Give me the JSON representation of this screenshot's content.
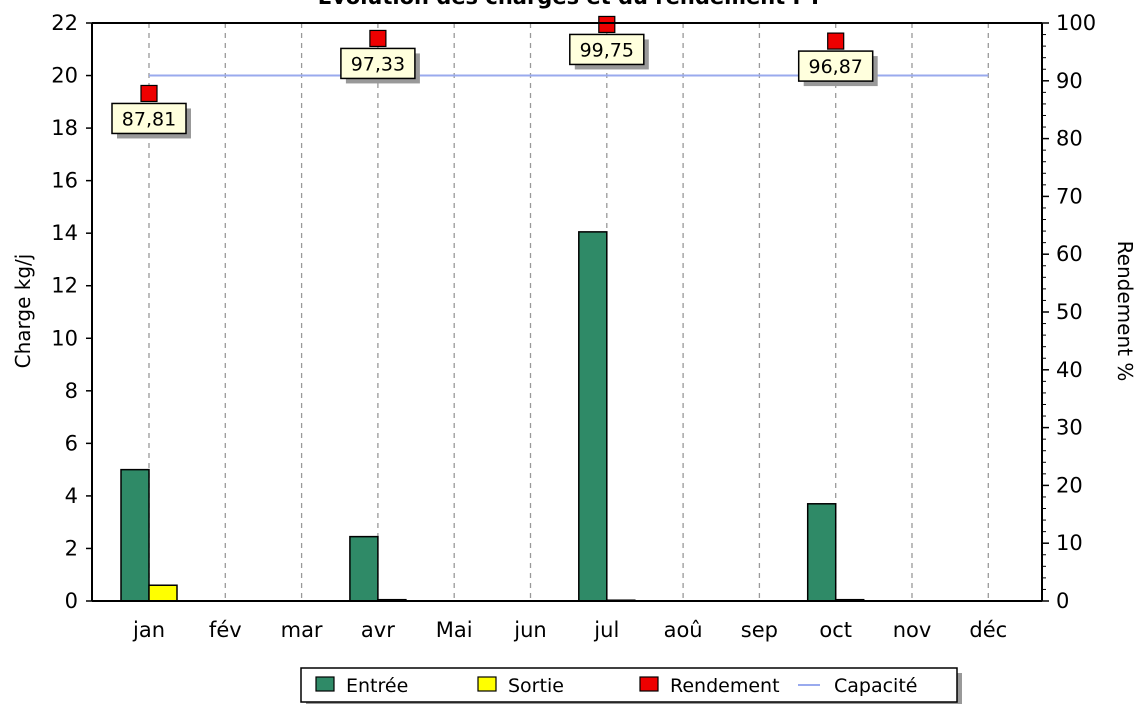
{
  "chart_data": {
    "type": "bar",
    "title": "Evolution des charges et du rendement PT",
    "categories": [
      "jan",
      "fév",
      "mar",
      "avr",
      "Mai",
      "jun",
      "jul",
      "aoû",
      "sep",
      "oct",
      "nov",
      "déc"
    ],
    "ylabel": "Charge kg/j",
    "y2label": "Rendement %",
    "ylim": [
      0,
      22
    ],
    "y2lim": [
      0,
      100
    ],
    "yticks": [
      0,
      2,
      4,
      6,
      8,
      10,
      12,
      14,
      16,
      18,
      20,
      22
    ],
    "y2ticks": [
      0,
      10,
      20,
      30,
      40,
      50,
      60,
      70,
      80,
      90,
      100
    ],
    "grid": "vertical dashed",
    "series": [
      {
        "name": "Entrée",
        "kind": "bar",
        "color": "#2f8a67",
        "values": [
          5.0,
          0,
          0,
          2.45,
          0,
          0,
          14.05,
          0,
          0,
          3.7,
          0,
          0
        ]
      },
      {
        "name": "Sortie",
        "kind": "bar",
        "color": "#ffff00",
        "values": [
          0.6,
          0,
          0,
          0.05,
          0,
          0,
          0.03,
          0,
          0,
          0.05,
          0,
          0
        ]
      },
      {
        "name": "Rendement",
        "kind": "point",
        "axis": "right",
        "color": "#ee0000",
        "points": [
          {
            "category": "jan",
            "value": 87.81,
            "label": "87,81"
          },
          {
            "category": "avr",
            "value": 97.33,
            "label": "97,33"
          },
          {
            "category": "jul",
            "value": 99.75,
            "label": "99,75"
          },
          {
            "category": "oct",
            "value": 96.87,
            "label": "96,87"
          }
        ]
      },
      {
        "name": "Capacité",
        "kind": "line",
        "color": "#99aaee",
        "value": 20.0,
        "from": "jan",
        "to": "déc"
      }
    ],
    "legend": {
      "position": "bottom-center"
    }
  }
}
